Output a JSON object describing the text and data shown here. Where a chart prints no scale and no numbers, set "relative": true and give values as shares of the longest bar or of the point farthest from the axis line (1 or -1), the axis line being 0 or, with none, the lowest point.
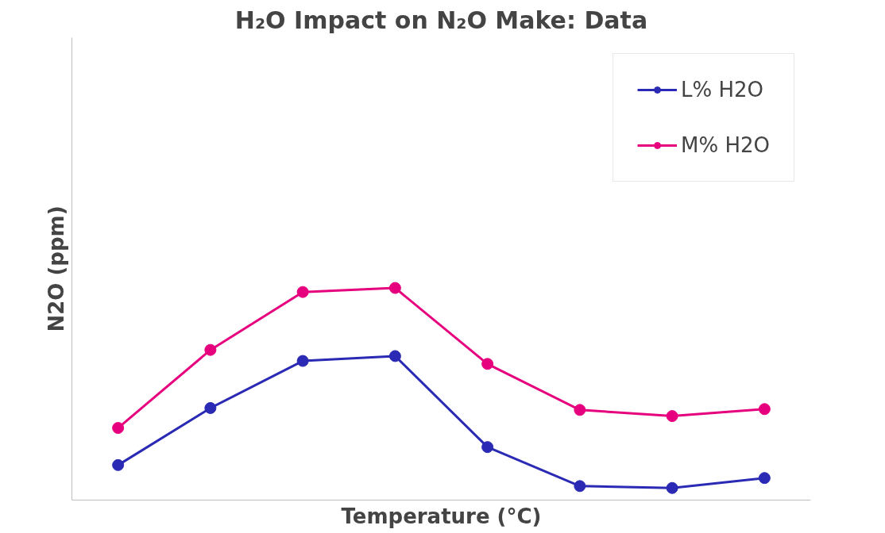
{
  "chart_data": {
    "type": "line",
    "title": "H₂O Impact on N₂O Make: Data",
    "xlabel": "Temperature (°C)",
    "ylabel": "N2O (ppm)",
    "relative": true,
    "categories": [
      null,
      null,
      null,
      null,
      null,
      null,
      null,
      null
    ],
    "series": [
      {
        "name": "L% H2O",
        "color": "#2a2ab4",
        "values": [
          0.165,
          0.434,
          0.656,
          0.679,
          0.25,
          0.066,
          0.057,
          0.104
        ]
      },
      {
        "name": "M% H2O",
        "color": "#e6007e",
        "values": [
          0.34,
          0.708,
          0.981,
          1.0,
          0.642,
          0.425,
          0.396,
          0.429
        ]
      }
    ],
    "marker": "circle",
    "line_style": "solid",
    "legend": "top right"
  }
}
